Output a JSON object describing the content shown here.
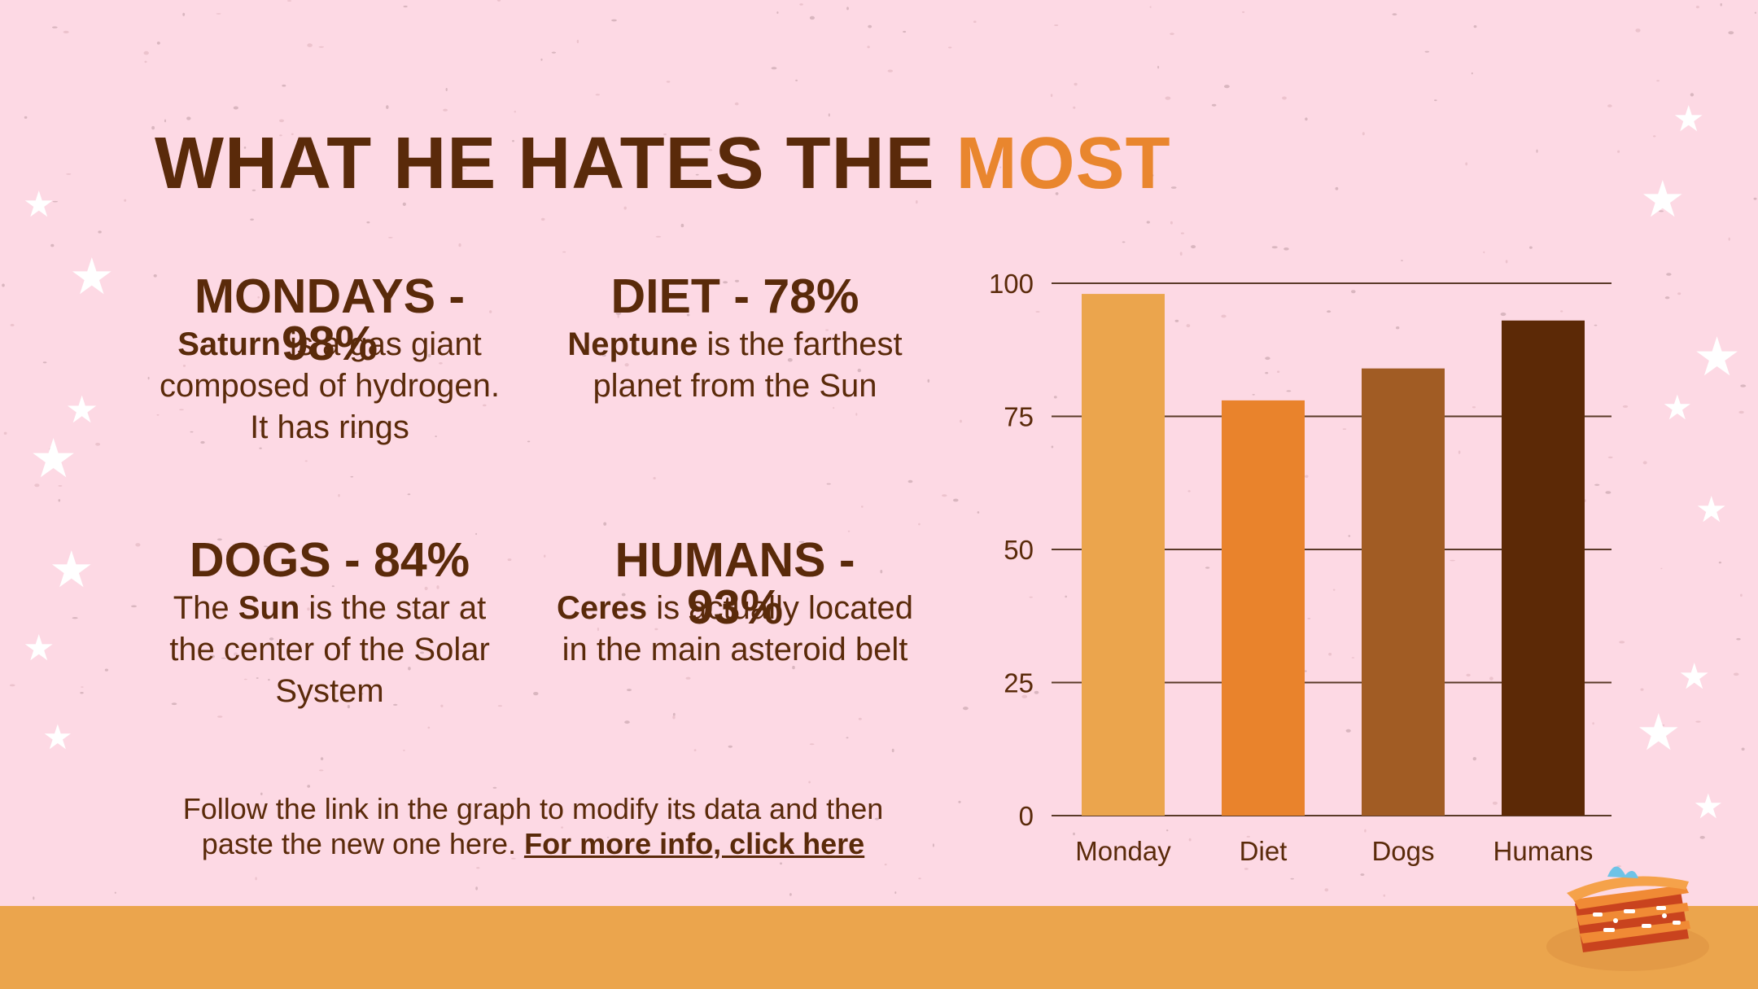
{
  "slide": {
    "title_main": "WHAT HE HATES THE",
    "title_accent": "MOST",
    "colors": {
      "background": "#fdd9e4",
      "text": "#5a2a0a",
      "accent": "#e9862e",
      "floor": "#eba54d"
    }
  },
  "items": [
    {
      "heading": "MONDAYS -",
      "value": "98%",
      "bold": "Saturn",
      "text": " is a gas giant composed of hydrogen. It has rings"
    },
    {
      "heading": "DIET - 78%",
      "bold": "Neptune",
      "text": " is the farthest planet from the Sun"
    },
    {
      "heading": "DOGS - 84%",
      "bold_pre": "The ",
      "bold": "Sun",
      "text": " is the star at the center of the Solar System"
    },
    {
      "heading": "HUMANS -",
      "value": "93%",
      "bold": "Ceres",
      "text": " is actually located in the main asteroid belt"
    }
  ],
  "footnote": {
    "text": "Follow the link in the graph to modify its data and then paste the new one here. ",
    "link": "For more info, click here"
  },
  "decor": {
    "star_icon": "star-icon",
    "food_icon": "lasagna-icon"
  },
  "chart_data": {
    "type": "bar",
    "categories": [
      "Monday",
      "Diet",
      "Dogs",
      "Humans"
    ],
    "values": [
      98,
      78,
      84,
      93
    ],
    "colors": [
      "#eba54d",
      "#e9832c",
      "#a15c24",
      "#5c2906"
    ],
    "ylim": [
      0,
      100
    ],
    "yticks": [
      0,
      25,
      50,
      75,
      100
    ],
    "grid": true,
    "xlabel": "",
    "ylabel": "",
    "title": ""
  }
}
